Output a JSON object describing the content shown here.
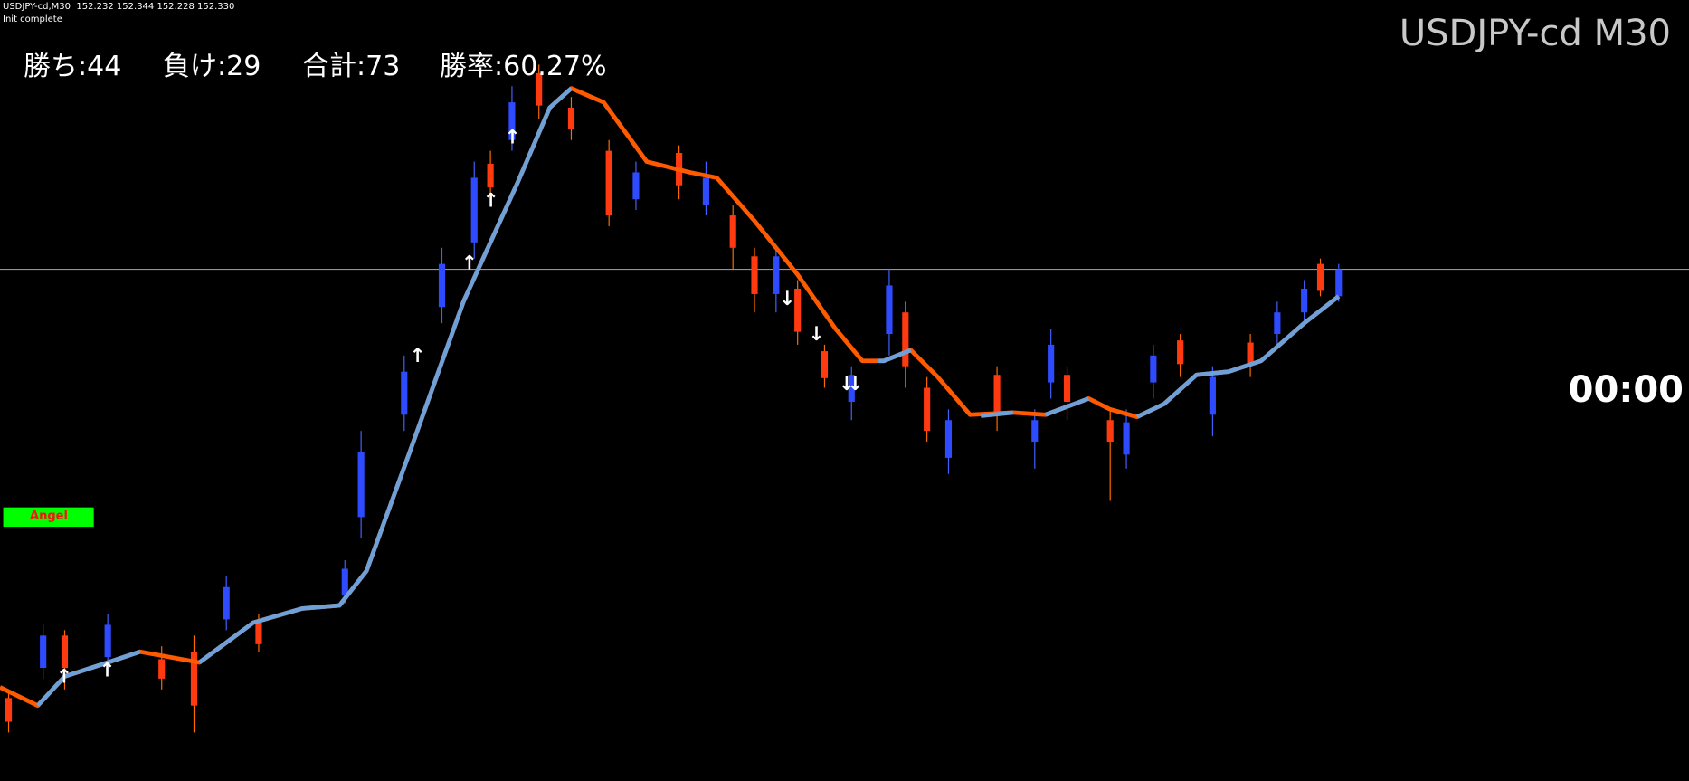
{
  "header": {
    "symbol_line": "USDJPY-cd,M30  152.232 152.344 152.228 152.330",
    "status": "Init complete"
  },
  "stats": {
    "wins": "勝ち:44",
    "losses": "負け:29",
    "total": "合計:73",
    "win_rate": "勝率:60.27%"
  },
  "chart_label": "USDJPY-cd M30",
  "timer": "00:00",
  "badge": "Angel"
}
